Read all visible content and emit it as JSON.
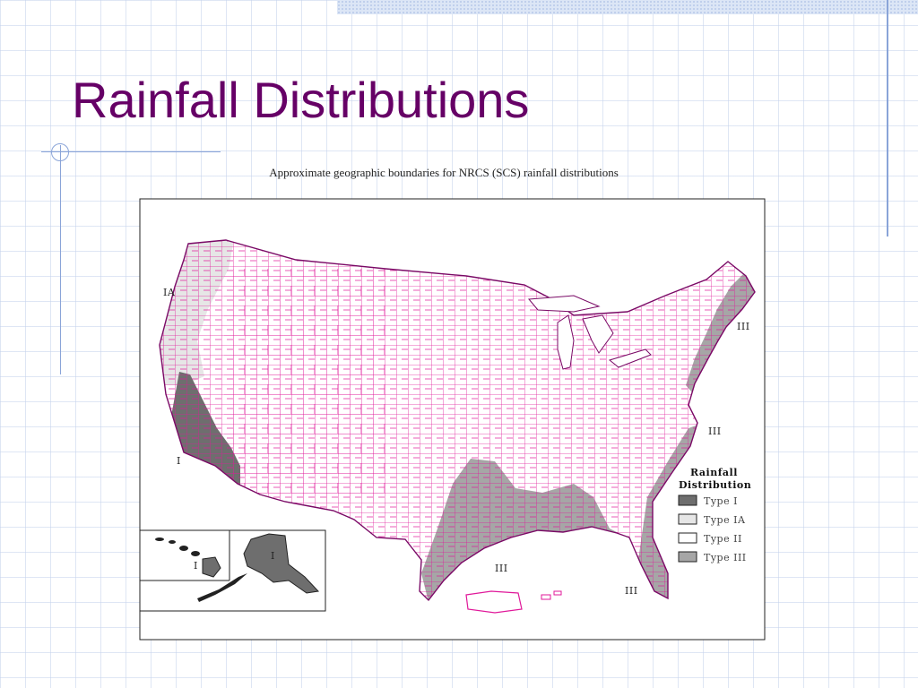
{
  "slide": {
    "title": "Rainfall Distributions"
  },
  "figure": {
    "caption": "Approximate geographic boundaries for NRCS (SCS) rainfall distributions"
  },
  "map": {
    "region_labels": {
      "ia_west": "IA",
      "i_west": "I",
      "iii_northeast": "III",
      "iii_southeast": "III",
      "iii_gulf": "III",
      "iii_florida": "III",
      "i_hawaii": "I",
      "i_alaska": "I"
    },
    "legend": {
      "title_line1": "Rainfall",
      "title_line2": "Distribution",
      "items": [
        {
          "label": "Type I",
          "color": "#6e6e6e"
        },
        {
          "label": "Type IA",
          "color": "#e6e6e6"
        },
        {
          "label": "Type II",
          "color": "#ffffff"
        },
        {
          "label": "Type III",
          "color": "#a6a6a6"
        }
      ]
    },
    "colors": {
      "county_lines": "#e0199a",
      "state_lines": "#7a0a66",
      "type_i": "#6e6e6e",
      "type_ia": "#e6e6e6",
      "type_ii": "#ffffff",
      "type_iii": "#a6a6a6"
    }
  }
}
